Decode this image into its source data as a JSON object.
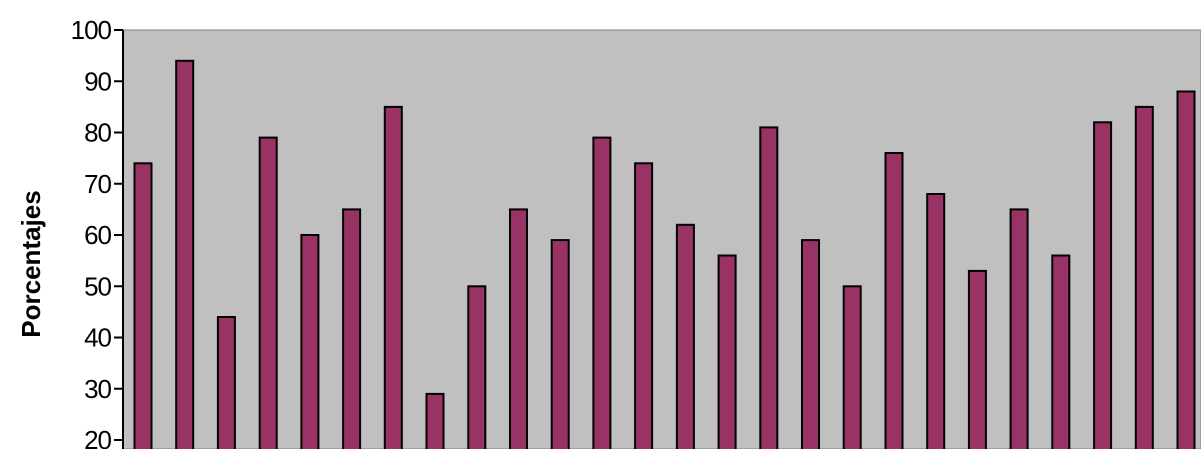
{
  "chart_data": {
    "type": "bar",
    "title": "",
    "xlabel": "",
    "ylabel": "Porcentajes",
    "ylim": [
      20,
      100
    ],
    "yticks": [
      20,
      30,
      40,
      50,
      60,
      70,
      80,
      90,
      100
    ],
    "grid": false,
    "legend": "none",
    "values": [
      74,
      94,
      44,
      79,
      60,
      65,
      85,
      29,
      50,
      65,
      59,
      79,
      74,
      62,
      56,
      81,
      59,
      50,
      76,
      68,
      53,
      65,
      56,
      82,
      85,
      88
    ],
    "colors": {
      "bar": "#993366",
      "plot_background": "#c0c0c0",
      "outline": "#000000"
    }
  }
}
